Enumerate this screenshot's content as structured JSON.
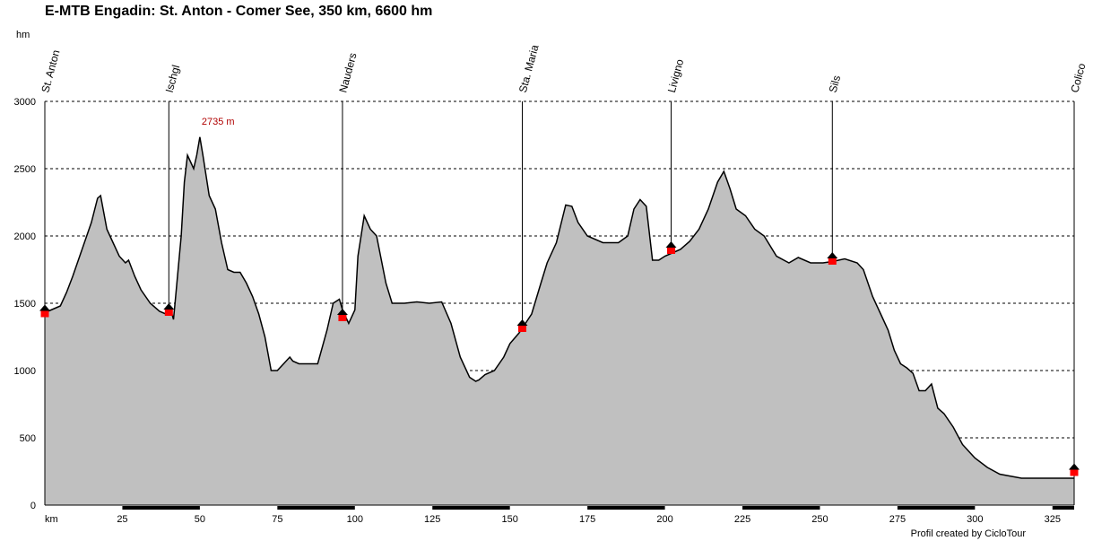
{
  "chart_data": {
    "type": "area",
    "title": "E-MTB Engadin: St. Anton - Comer See, 350 km, 6600 hm",
    "ylabel": "hm",
    "xlabel": "km",
    "xlim": [
      0,
      332
    ],
    "ylim": [
      0,
      3000
    ],
    "yticks": [
      0,
      500,
      1000,
      1500,
      2000,
      2500,
      3000
    ],
    "xticks": [
      25,
      50,
      75,
      100,
      125,
      150,
      175,
      200,
      225,
      250,
      275,
      300,
      325
    ],
    "grid": true,
    "fill_color": "#c0c0c0",
    "line_color": "#000000",
    "marker_color": "#ff0000",
    "profile": {
      "x": [
        0,
        2,
        5,
        7,
        9,
        12,
        15,
        17,
        18,
        20,
        22,
        24,
        26,
        27,
        29,
        31,
        34,
        37,
        39,
        41,
        41.5,
        42,
        44,
        45,
        46,
        48,
        49,
        50,
        51,
        53,
        55,
        57,
        59,
        61,
        63,
        65,
        67,
        69,
        71,
        73,
        75,
        77,
        79,
        80,
        82,
        85,
        88,
        91,
        93,
        95,
        96,
        98,
        100,
        101,
        103,
        105,
        107,
        110,
        112,
        116,
        120,
        124,
        128,
        131,
        134,
        137,
        139,
        140,
        142,
        145,
        148,
        150,
        153,
        155,
        157,
        160,
        162,
        165,
        168,
        170,
        172,
        175,
        180,
        183,
        185,
        188,
        190,
        192,
        194,
        196,
        198,
        200,
        202,
        205,
        208,
        211,
        214,
        217,
        219,
        221,
        223,
        226,
        229,
        232,
        236,
        240,
        243,
        247,
        251,
        254,
        258,
        262,
        264,
        267,
        270,
        272,
        274,
        276,
        278,
        280,
        282,
        284,
        286,
        288,
        290,
        293,
        296,
        300,
        304,
        308,
        315,
        320,
        325,
        332
      ],
      "y": [
        1430,
        1450,
        1480,
        1580,
        1700,
        1900,
        2100,
        2280,
        2300,
        2050,
        1950,
        1850,
        1800,
        1820,
        1700,
        1600,
        1500,
        1440,
        1420,
        1420,
        1380,
        1500,
        2000,
        2400,
        2600,
        2500,
        2600,
        2735,
        2600,
        2300,
        2200,
        1950,
        1750,
        1730,
        1730,
        1650,
        1550,
        1420,
        1250,
        1000,
        1000,
        1050,
        1100,
        1070,
        1050,
        1050,
        1050,
        1300,
        1500,
        1530,
        1450,
        1350,
        1450,
        1850,
        2150,
        2050,
        2000,
        1650,
        1500,
        1500,
        1510,
        1500,
        1510,
        1350,
        1100,
        950,
        920,
        930,
        970,
        1000,
        1100,
        1200,
        1280,
        1350,
        1420,
        1650,
        1800,
        1950,
        2230,
        2220,
        2100,
        2000,
        1950,
        1950,
        1950,
        2000,
        2200,
        2270,
        2220,
        1820,
        1820,
        1850,
        1870,
        1900,
        1960,
        2050,
        2200,
        2400,
        2480,
        2350,
        2200,
        2150,
        2050,
        2000,
        1850,
        1800,
        1840,
        1800,
        1800,
        1810,
        1830,
        1800,
        1750,
        1550,
        1400,
        1300,
        1150,
        1050,
        1020,
        980,
        850,
        850,
        900,
        720,
        680,
        580,
        450,
        350,
        280,
        230,
        200,
        200,
        200,
        200
      ],
      "peak_label": "2735 m",
      "peak": [
        50,
        2735
      ]
    },
    "waypoints": [
      {
        "name": "St. Anton",
        "x": 0,
        "y": 1430
      },
      {
        "name": "Ischgl",
        "x": 40,
        "y": 1440
      },
      {
        "name": "Nauders",
        "x": 96,
        "y": 1400
      },
      {
        "name": "Sta. Maria",
        "x": 154,
        "y": 1320
      },
      {
        "name": "Livigno",
        "x": 202,
        "y": 1900
      },
      {
        "name": "Sils",
        "x": 254,
        "y": 1820
      },
      {
        "name": "Colico",
        "x": 332,
        "y": 250
      }
    ]
  },
  "credit": "Profil created by CicloTour"
}
